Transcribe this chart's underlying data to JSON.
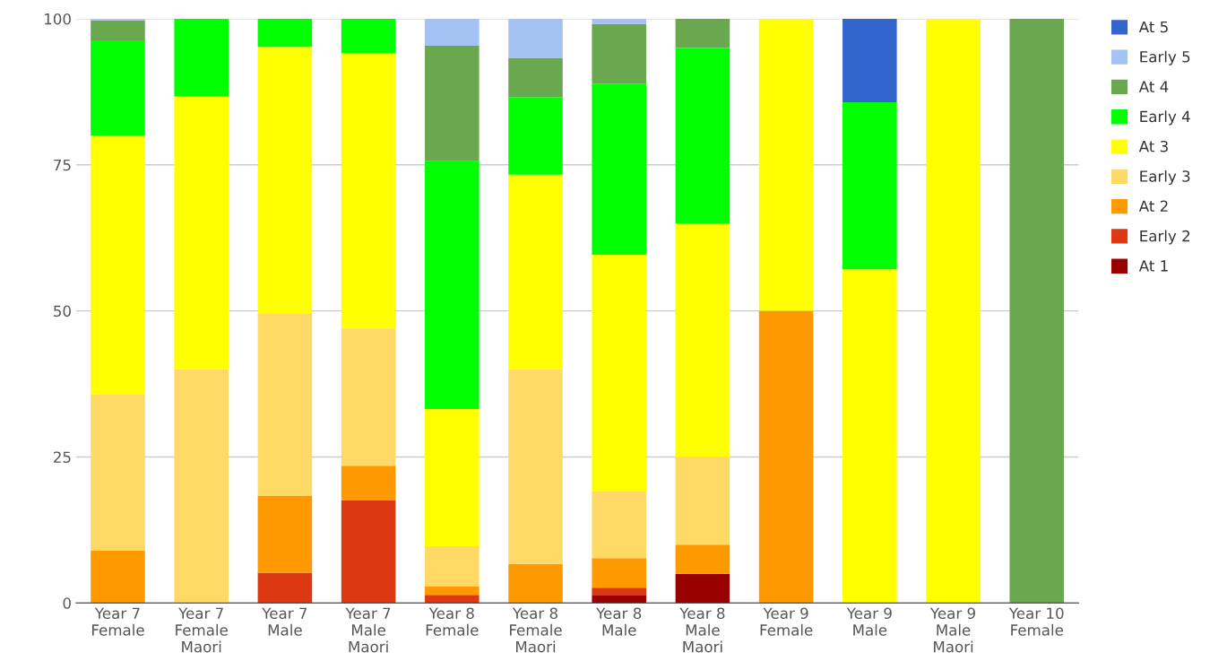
{
  "chart_data": {
    "type": "bar",
    "stacked": true,
    "categories": [
      "Year 7\nFemale",
      "Year 7\nFemale\nMaori",
      "Year 7\nMale",
      "Year 7\nMale\nMaori",
      "Year 8\nFemale",
      "Year 8\nFemale\nMaori",
      "Year 8\nMale",
      "Year 8\nMale\nMaori",
      "Year 9\nFemale",
      "Year 9\nMale",
      "Year 9\nMale\nMaori",
      "Year 10\nFemale"
    ],
    "series": [
      {
        "name": "At 1",
        "color": "#990000",
        "values": [
          0,
          0,
          0,
          0,
          0,
          0,
          1.4,
          5,
          0,
          0,
          0,
          0
        ]
      },
      {
        "name": "Early 2",
        "color": "#dc3912",
        "values": [
          0,
          0,
          5.2,
          17.6,
          1.4,
          0,
          1.2,
          0,
          0,
          0,
          0,
          0
        ]
      },
      {
        "name": "At 2",
        "color": "#ff9900",
        "values": [
          9,
          0,
          13.1,
          5.9,
          1.5,
          6.7,
          5.1,
          5,
          50,
          0,
          0,
          0
        ]
      },
      {
        "name": "Early 3",
        "color": "#ffd966",
        "values": [
          26.7,
          40,
          31.3,
          23.5,
          6.8,
          33.3,
          11.5,
          15,
          0,
          0,
          0,
          0
        ]
      },
      {
        "name": "At 3",
        "color": "#ffff00",
        "values": [
          44.3,
          46.7,
          45.6,
          47.1,
          23.5,
          33.3,
          40.4,
          40,
          50,
          57.1,
          100,
          0
        ]
      },
      {
        "name": "Early 4",
        "color": "#00ff00",
        "values": [
          16.3,
          13.3,
          4.8,
          5.9,
          42.4,
          13.3,
          29.3,
          30,
          0,
          28.6,
          0,
          0
        ]
      },
      {
        "name": "At 4",
        "color": "#6aa84f",
        "values": [
          3.4,
          0,
          0,
          0,
          19.8,
          6.7,
          10.2,
          5,
          0,
          0,
          0,
          100
        ]
      },
      {
        "name": "Early 5",
        "color": "#a4c2f4",
        "values": [
          0.3,
          0,
          0,
          0,
          4.6,
          6.7,
          0.9,
          0,
          0,
          0,
          0,
          0
        ]
      },
      {
        "name": "At 5",
        "color": "#3366cc",
        "values": [
          0,
          0,
          0,
          0,
          0,
          0,
          0,
          0,
          0,
          14.3,
          0,
          0
        ]
      }
    ],
    "ylim": [
      0,
      100
    ],
    "yticks": [
      0,
      25,
      50,
      75,
      100
    ],
    "grid": "y",
    "legend": "top right"
  }
}
